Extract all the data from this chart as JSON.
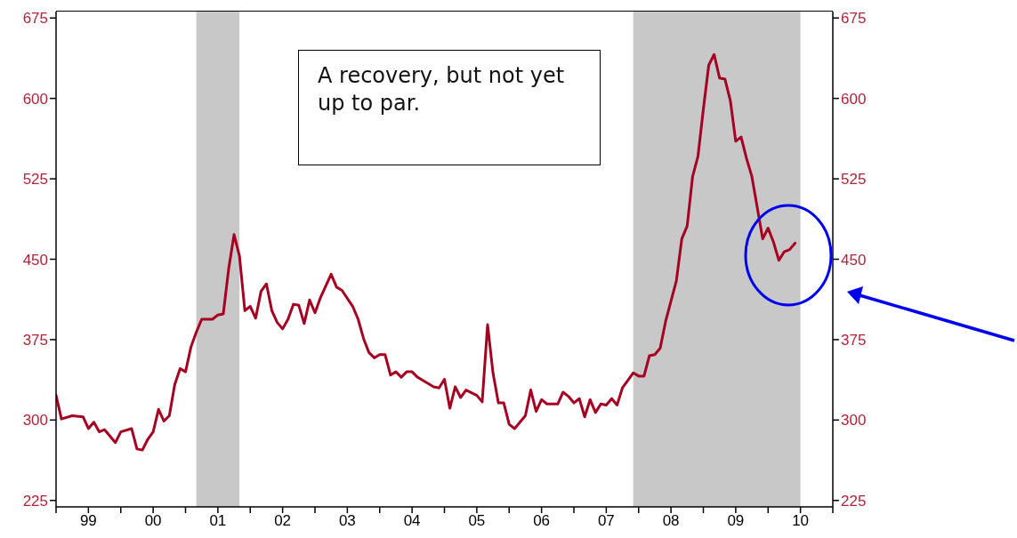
{
  "chart_data": {
    "type": "line",
    "x": [
      "1999-01",
      "1999-02",
      "1999-04",
      "1999-06",
      "1999-07",
      "1999-08",
      "1999-09",
      "1999-10",
      "1999-11",
      "1999-12",
      "2000-01",
      "2000-03",
      "2000-04",
      "2000-05",
      "2000-06",
      "2000-07",
      "2000-08",
      "2000-09",
      "2000-10",
      "2000-11",
      "2000-12",
      "2001-01",
      "2001-02",
      "2001-03",
      "2001-04",
      "2001-06",
      "2001-07",
      "2001-08",
      "2001-09",
      "2001-10",
      "2001-11",
      "2001-12",
      "2002-01",
      "2002-02",
      "2002-03",
      "2002-04",
      "2002-05",
      "2002-06",
      "2002-07",
      "2002-08",
      "2002-09",
      "2002-10",
      "2002-11",
      "2002-12",
      "2003-01",
      "2003-02",
      "2003-04",
      "2003-05",
      "2003-06",
      "2003-08",
      "2003-09",
      "2003-10",
      "2003-11",
      "2003-12",
      "2004-01",
      "2004-02",
      "2004-03",
      "2004-04",
      "2004-05",
      "2004-06",
      "2004-07",
      "2004-08",
      "2004-09",
      "2004-11",
      "2004-12",
      "2005-01",
      "2005-02",
      "2005-03",
      "2005-04",
      "2005-05",
      "2005-07",
      "2005-08",
      "2005-09",
      "2005-10",
      "2005-11",
      "2005-12",
      "2006-01",
      "2006-02",
      "2006-04",
      "2006-05",
      "2006-06",
      "2006-07",
      "2006-08",
      "2006-10",
      "2006-11",
      "2006-12",
      "2007-01",
      "2007-02",
      "2007-03",
      "2007-04",
      "2007-05",
      "2007-06",
      "2007-07",
      "2007-08",
      "2007-09",
      "2007-10",
      "2007-12",
      "2008-01",
      "2008-02",
      "2008-03",
      "2008-04",
      "2008-05",
      "2008-06",
      "2008-08",
      "2008-09",
      "2008-10",
      "2008-11",
      "2008-12",
      "2009-01",
      "2009-02",
      "2009-03",
      "2009-04",
      "2009-05",
      "2009-06",
      "2009-07",
      "2009-08",
      "2009-09",
      "2009-10",
      "2009-12",
      "2010-01",
      "2010-02",
      "2010-03",
      "2010-04",
      "2010-05",
      "2010-06"
    ],
    "series": [
      {
        "color": "#a50021",
        "values": [
          323,
          301,
          304,
          303,
          292,
          298,
          289,
          291,
          285,
          279,
          289,
          292,
          273,
          272,
          282,
          289,
          310,
          299,
          304,
          333,
          348,
          345,
          368,
          382,
          394,
          394,
          398,
          399,
          441,
          473,
          453,
          402,
          406,
          395,
          420,
          427,
          402,
          391,
          385,
          394,
          408,
          407,
          390,
          412,
          400,
          414,
          436,
          424,
          421,
          406,
          394,
          376,
          363,
          358,
          361,
          361,
          342,
          345,
          340,
          345,
          345,
          340,
          337,
          331,
          330,
          338,
          311,
          331,
          321,
          328,
          323,
          317,
          389,
          344,
          316,
          316,
          296,
          292,
          304,
          328,
          308,
          319,
          315,
          315,
          326,
          322,
          316,
          320,
          303,
          319,
          307,
          315,
          314,
          320,
          314,
          330,
          344,
          341,
          341,
          360,
          361,
          367,
          392,
          430,
          469,
          481,
          527,
          546,
          590,
          631,
          641,
          619,
          618,
          598,
          560,
          564,
          544,
          527,
          469,
          479,
          466,
          449,
          457,
          459,
          465
        ]
      }
    ],
    "xlim": [
      "1999",
      "2011"
    ],
    "xticks": [
      {
        "value": "1999",
        "label": null
      },
      {
        "value": "1999-07",
        "label": "99"
      },
      {
        "value": "2000",
        "label": null
      },
      {
        "value": "2000-07",
        "label": "00"
      },
      {
        "value": "2001",
        "label": null
      },
      {
        "value": "2001-07",
        "label": "01"
      },
      {
        "value": "2002",
        "label": null
      },
      {
        "value": "2002-07",
        "label": "02"
      },
      {
        "value": "2003",
        "label": null
      },
      {
        "value": "2003-07",
        "label": "03"
      },
      {
        "value": "2004",
        "label": null
      },
      {
        "value": "2004-07",
        "label": "04"
      },
      {
        "value": "2005",
        "label": null
      },
      {
        "value": "2005-07",
        "label": "05"
      },
      {
        "value": "2006",
        "label": null
      },
      {
        "value": "2006-07",
        "label": "06"
      },
      {
        "value": "2007",
        "label": null
      },
      {
        "value": "2007-07",
        "label": "07"
      },
      {
        "value": "2008",
        "label": null
      },
      {
        "value": "2008-07",
        "label": "08"
      },
      {
        "value": "2009",
        "label": null
      },
      {
        "value": "2009-07",
        "label": "09"
      },
      {
        "value": "2010",
        "label": null
      },
      {
        "value": "2010-07",
        "label": "10"
      },
      {
        "value": "2011",
        "label": null
      }
    ],
    "ylim": [
      219,
      681
    ],
    "yticks": [
      225,
      300,
      375,
      450,
      525,
      600,
      675
    ],
    "y2lim": [
      219,
      681
    ],
    "y2ticks": [
      225,
      300,
      375,
      450,
      525,
      600,
      675
    ],
    "bands": [
      {
        "axis": "x",
        "from": "2001-03",
        "to": "2001-11",
        "color": "#c8c8c8"
      },
      {
        "axis": "x",
        "from": "2007-12",
        "to": "2010-07",
        "color": "#c8c8c8"
      }
    ],
    "annotations": [
      "A recovery, but not yet up to par."
    ],
    "marker": "none",
    "line_style": "solid"
  }
}
